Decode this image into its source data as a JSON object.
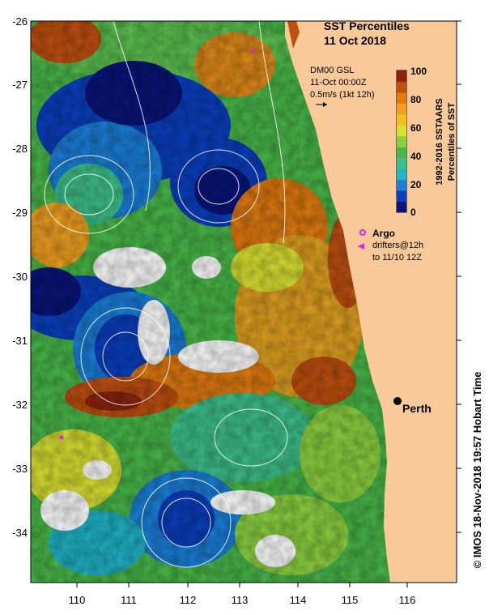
{
  "map": {
    "title": "SST Percentiles",
    "date": "11 Oct 2018",
    "model_label": "DM00 GSL",
    "model_time": "11-Oct 00:00Z",
    "vector_scale": "0.5m/s (1kt 12h)",
    "colorbar": {
      "ticks": [
        "100",
        "80",
        "60",
        "40",
        "20",
        "0"
      ],
      "title_line1": "1992-2016 SSTAARS",
      "title_line2": "Percentiles of SST",
      "colors": [
        "#08157a",
        "#0a3fbf",
        "#1a7fd8",
        "#1fb4c8",
        "#3dc08a",
        "#48b848",
        "#8cd040",
        "#d8e030",
        "#f0c020",
        "#f0a020",
        "#e07a10",
        "#c05010",
        "#8a2410"
      ]
    },
    "legend": {
      "argo_label": "Argo",
      "drifters_label": "drifters@12h",
      "drifters_time": "to 11/10 12Z"
    },
    "city": {
      "name": "Perth"
    },
    "lat_labels": [
      "-26",
      "-27",
      "-28",
      "-29",
      "-30",
      "-31",
      "-32",
      "-33",
      "-34"
    ],
    "lon_labels": [
      "110",
      "111",
      "112",
      "113",
      "114",
      "115",
      "116"
    ],
    "credit": "© IMOS 18-Nov-2018 19:57 Hobart Time",
    "land_color": "#fac99a"
  }
}
